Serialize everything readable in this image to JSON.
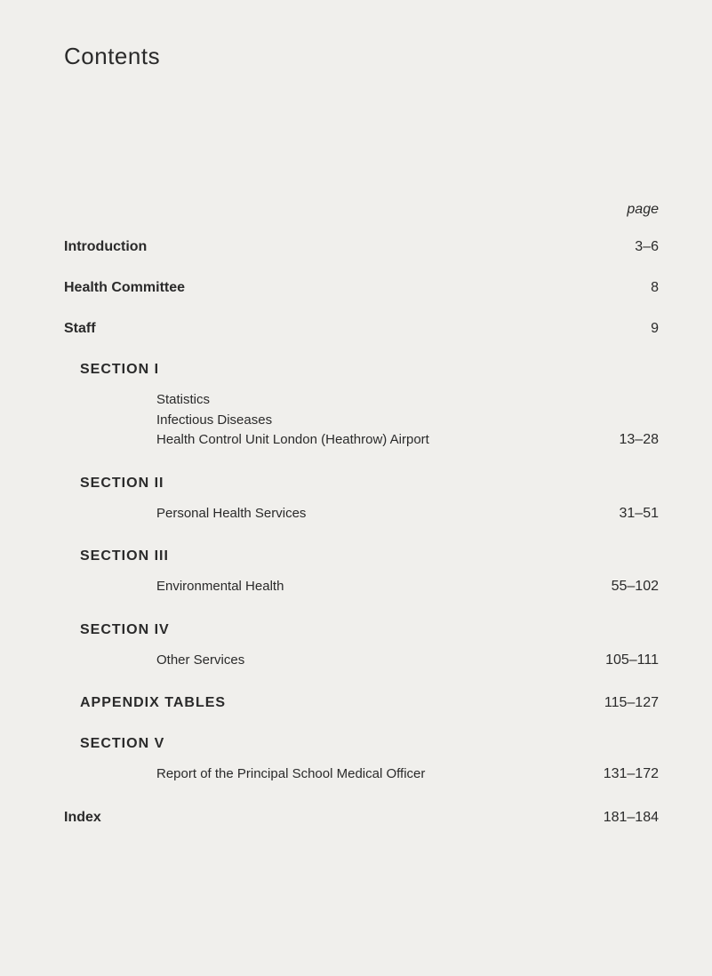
{
  "title": "Contents",
  "page_header": "page",
  "top_entries": [
    {
      "label": "Introduction",
      "page": "3–6"
    },
    {
      "label": "Health Committee",
      "page": "8"
    },
    {
      "label": "Staff",
      "page": "9"
    }
  ],
  "sections": [
    {
      "heading": "SECTION I",
      "lines": [
        "Statistics",
        "Infectious Diseases",
        "Health Control Unit London (Heathrow) Airport"
      ],
      "page": "13–28"
    },
    {
      "heading": "SECTION II",
      "lines": [
        "Personal Health Services"
      ],
      "page": "31–51"
    },
    {
      "heading": "SECTION III",
      "lines": [
        "Environmental Health"
      ],
      "page": "55–102"
    },
    {
      "heading": "SECTION IV",
      "lines": [
        "Other Services"
      ],
      "page": "105–111"
    }
  ],
  "appendix": {
    "label": "APPENDIX TABLES",
    "page": "115–127"
  },
  "section_v": {
    "heading": "SECTION V",
    "lines": [
      "Report of the Principal School Medical Officer"
    ],
    "page": "131–172"
  },
  "index": {
    "label": "Index",
    "page": "181–184"
  },
  "colors": {
    "background": "#f0efec",
    "text": "#2a2a2a"
  },
  "typography": {
    "title_size": 26,
    "body_size": 16,
    "sub_size": 15,
    "font_family": "Arial, Helvetica, sans-serif"
  }
}
